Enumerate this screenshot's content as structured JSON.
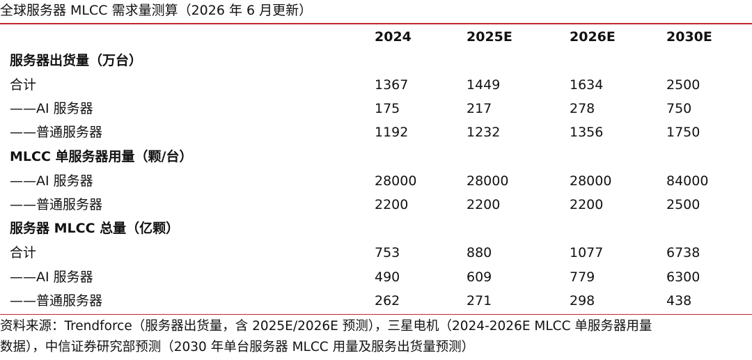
{
  "title": "全球服务器 MLCC 需求量测算（2026 年 6 月更新）",
  "header": {
    "label": "",
    "years": [
      "2024",
      "2025E",
      "2026E",
      "2030E"
    ]
  },
  "rows": [
    {
      "label": "服务器出货量（万台）",
      "section": true,
      "values": [
        "",
        "",
        "",
        ""
      ]
    },
    {
      "label": "合计",
      "section": false,
      "values": [
        "1367",
        "1449",
        "1634",
        "2500"
      ]
    },
    {
      "label": "——AI 服务器",
      "section": false,
      "values": [
        "175",
        "217",
        "278",
        "750"
      ]
    },
    {
      "label": "——普通服务器",
      "section": false,
      "values": [
        "1192",
        "1232",
        "1356",
        "1750"
      ]
    },
    {
      "label": "MLCC 单服务器用量（颗/台）",
      "section": true,
      "values": [
        "",
        "",
        "",
        ""
      ]
    },
    {
      "label": "——AI 服务器",
      "section": false,
      "values": [
        "28000",
        "28000",
        "28000",
        "84000"
      ]
    },
    {
      "label": "——普通服务器",
      "section": false,
      "values": [
        "2200",
        "2200",
        "2200",
        "2500"
      ]
    },
    {
      "label": "服务器 MLCC 总量（亿颗）",
      "section": true,
      "values": [
        "",
        "",
        "",
        ""
      ]
    },
    {
      "label": "合计",
      "section": false,
      "values": [
        "753",
        "880",
        "1077",
        "6738"
      ]
    },
    {
      "label": "——AI 服务器",
      "section": false,
      "values": [
        "490",
        "609",
        "779",
        "6300"
      ]
    },
    {
      "label": "——普通服务器",
      "section": false,
      "values": [
        "262",
        "271",
        "298",
        "438"
      ]
    }
  ],
  "source": {
    "line1": "资料来源：Trendforce（服务器出货量，含 2025E/2026E 预测），三星电机（2024-2026E MLCC 单服务器用量",
    "line2": "数据），中信证券研究部预测（2030 年单台服务器 MLCC 用量及服务出货量预测）"
  },
  "colors": {
    "rule": "#c0262d",
    "text": "#111111"
  }
}
